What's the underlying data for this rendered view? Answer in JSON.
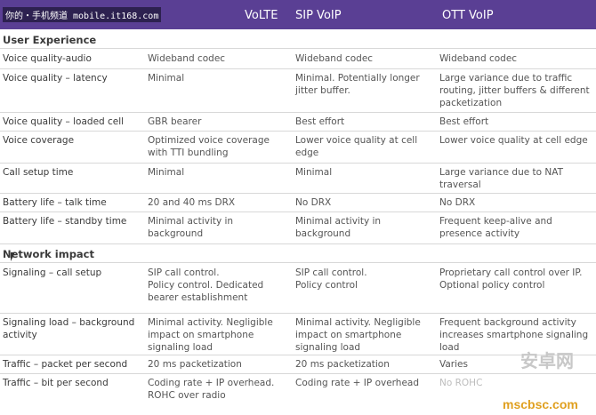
{
  "header": {
    "watermark": "你的・手机频道 mobile.it168.com",
    "columns": [
      "VoLTE",
      "SIP VoIP",
      "OTT VoIP"
    ]
  },
  "sections": [
    {
      "title": "User Experience",
      "rows": [
        {
          "label": "Voice quality-audio",
          "volte": "Wideband codec",
          "sip": "Wideband codec",
          "ott": "Wideband codec"
        },
        {
          "label": "Voice quality – latency",
          "volte": "Minimal",
          "sip": "Minimal. Potentially longer jitter buffer.",
          "ott": "Large variance due to traffic routing, jitter buffers & different packetization"
        },
        {
          "label": "Voice quality – loaded cell",
          "volte": "GBR bearer",
          "sip": "Best effort",
          "ott": "Best effort"
        },
        {
          "label": "Voice coverage",
          "volte": "Optimized voice coverage with TTI bundling",
          "sip": "Lower voice quality at cell edge",
          "ott": "Lower voice quality at cell edge"
        },
        {
          "label": "Call setup time",
          "volte": "Minimal",
          "sip": "Minimal",
          "ott": "Large variance due to NAT traversal"
        },
        {
          "label": "Battery life – talk time",
          "volte": "20 and 40 ms DRX",
          "sip": "No DRX",
          "ott": "No DRX"
        },
        {
          "label": "Battery life – standby time",
          "volte": "Minimal activity in background",
          "sip": "Minimal activity in background",
          "ott": "Frequent keep-alive and presence activity"
        }
      ]
    },
    {
      "title": "Network impact",
      "rows": [
        {
          "label": "Signaling – call setup",
          "volte": "SIP call control.\nPolicy control. Dedicated bearer establishment",
          "sip": "SIP call control.\nPolicy control",
          "ott": "Proprietary call control over IP. Optional policy control"
        },
        {
          "label": "Signaling load – background activity",
          "volte": "Minimal activity. Negligible impact on smartphone signaling load",
          "sip": "Minimal activity. Negligible impact on smartphone signaling load",
          "ott": "Frequent background activity increases smartphone signaling load"
        },
        {
          "label": "Traffic – packet per second",
          "volte": "20 ms packetization",
          "sip": "20 ms packetization",
          "ott": "Varies"
        },
        {
          "label": "Traffic – bit per second",
          "volte": "Coding rate + IP overhead.\nROHC over radio",
          "sip": "Coding rate + IP overhead",
          "ott": "No ROHC"
        }
      ]
    }
  ],
  "logo": {
    "brand": "安卓网",
    "site": "mscbsc.com"
  }
}
